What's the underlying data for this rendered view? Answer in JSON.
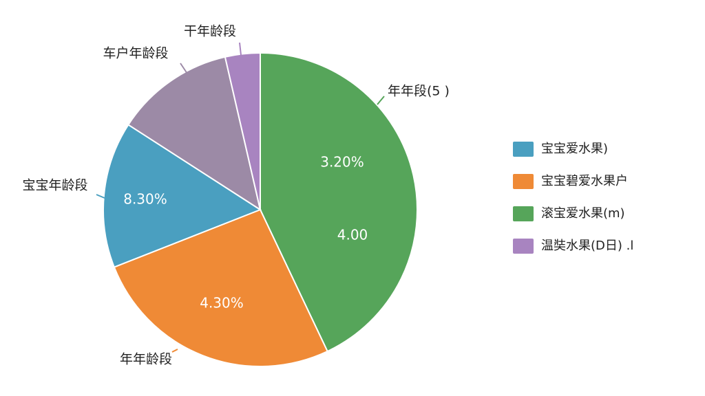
{
  "chart_data": {
    "type": "pie",
    "categories": [
      "年年段(5 )",
      "年年龄段",
      "宝宝年龄段",
      "车户年龄段",
      "干年龄段"
    ],
    "values": [
      43.0,
      26.1,
      15.1,
      12.3,
      3.6
    ],
    "colors": [
      "#56a55a",
      "#ef8a36",
      "#4a9fc0",
      "#9c8aa6",
      "#a884c0"
    ],
    "inner_labels": [
      "3.20%",
      "4.00",
      "8.30%",
      "4.30%"
    ],
    "legend": [
      {
        "name": "宝宝爱水果)",
        "color": "#4a9fc0"
      },
      {
        "name": "宝宝碧爱水果户",
        "color": "#ef8a36"
      },
      {
        "name": "滚宝爱水果(m)",
        "color": "#56a55a"
      },
      {
        "name": "温奘水果(D日) .ⅼ",
        "color": "#a884c0"
      }
    ]
  }
}
